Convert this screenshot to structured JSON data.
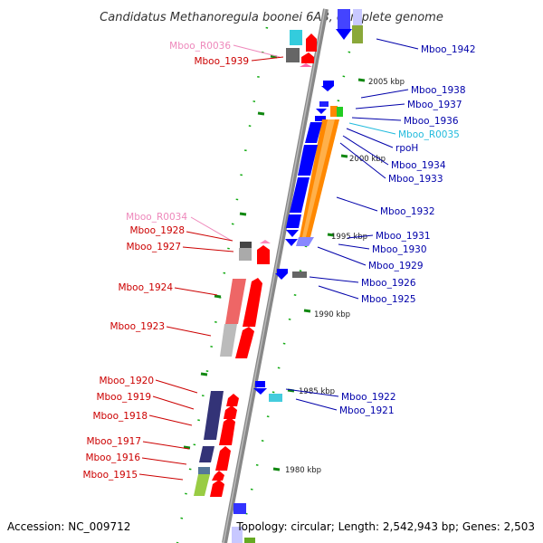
{
  "map": {
    "title": "Candidatus Methanoregula boonei 6A8, complete genome",
    "accession": "Accession: NC_009712",
    "summary": "Topology: circular; Length: 2,542,943 bp; Genes: 2,503"
  },
  "colors": {
    "backbone": "#808080",
    "label_left": "#cc0000",
    "label_right": "#0000aa",
    "label_rrna": "#ee88bb",
    "label_trna": "#22bbdd",
    "forward_cds": "#ff0000",
    "reverse_cds": "#0000ff",
    "orange_gene": "#ff8800",
    "navy_gene": "#333377",
    "grey_gene": "#888888",
    "green_tick": "#118811"
  },
  "ticks": [
    {
      "label": "2005 kbp"
    },
    {
      "label": "2000 kbp"
    },
    {
      "label": "1995 kbp"
    },
    {
      "label": "1990 kbp"
    },
    {
      "label": "1985 kbp"
    },
    {
      "label": "1980 kbp"
    }
  ],
  "labels_left": [
    {
      "text": "Mboo_R0036",
      "kind": "rrna"
    },
    {
      "text": "Mboo_1939",
      "kind": "cds"
    },
    {
      "text": "Mboo_R0034",
      "kind": "rrna"
    },
    {
      "text": "Mboo_1928",
      "kind": "cds"
    },
    {
      "text": "Mboo_1927",
      "kind": "cds"
    },
    {
      "text": "Mboo_1924",
      "kind": "cds"
    },
    {
      "text": "Mboo_1923",
      "kind": "cds"
    },
    {
      "text": "Mboo_1920",
      "kind": "cds"
    },
    {
      "text": "Mboo_1919",
      "kind": "cds"
    },
    {
      "text": "Mboo_1918",
      "kind": "cds"
    },
    {
      "text": "Mboo_1917",
      "kind": "cds"
    },
    {
      "text": "Mboo_1916",
      "kind": "cds"
    },
    {
      "text": "Mboo_1915",
      "kind": "cds"
    }
  ],
  "labels_right": [
    {
      "text": "Mboo_1942",
      "kind": "cds"
    },
    {
      "text": "Mboo_1938",
      "kind": "cds"
    },
    {
      "text": "Mboo_1937",
      "kind": "cds"
    },
    {
      "text": "Mboo_1936",
      "kind": "cds"
    },
    {
      "text": "Mboo_R0035",
      "kind": "trna"
    },
    {
      "text": "rpoH",
      "kind": "cds"
    },
    {
      "text": "Mboo_1934",
      "kind": "cds"
    },
    {
      "text": "Mboo_1933",
      "kind": "cds"
    },
    {
      "text": "Mboo_1932",
      "kind": "cds"
    },
    {
      "text": "Mboo_1931",
      "kind": "cds"
    },
    {
      "text": "Mboo_1930",
      "kind": "cds"
    },
    {
      "text": "Mboo_1929",
      "kind": "cds"
    },
    {
      "text": "Mboo_1926",
      "kind": "cds"
    },
    {
      "text": "Mboo_1925",
      "kind": "cds"
    },
    {
      "text": "Mboo_1922",
      "kind": "cds"
    },
    {
      "text": "Mboo_1921",
      "kind": "cds"
    }
  ]
}
